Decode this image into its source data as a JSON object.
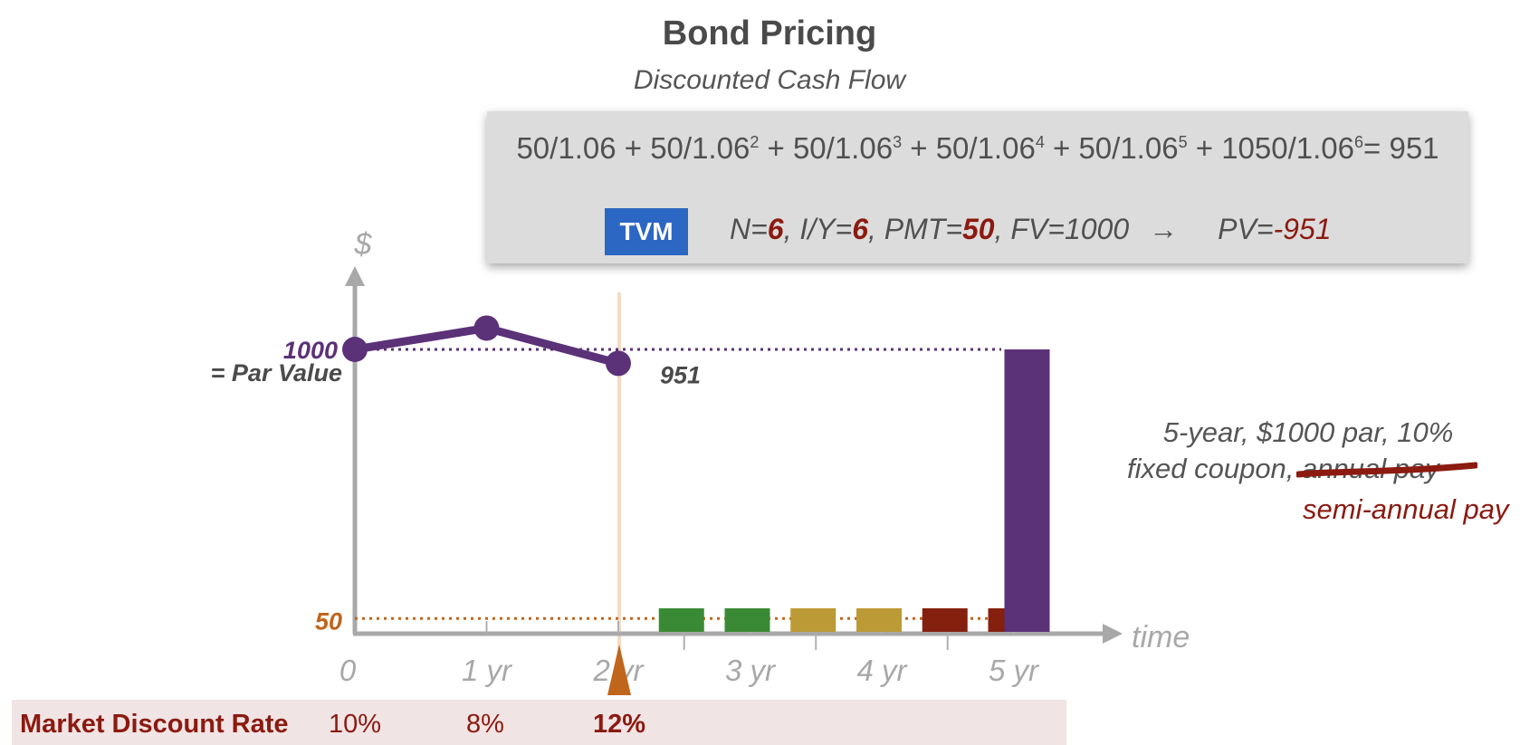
{
  "title": "Bond Pricing",
  "subtitle": "Discounted Cash Flow",
  "formula": {
    "terms": [
      {
        "numerator": "50",
        "base": "1.06",
        "exp": ""
      },
      {
        "numerator": "50",
        "base": "1.06",
        "exp": "2"
      },
      {
        "numerator": "50",
        "base": "1.06",
        "exp": "3"
      },
      {
        "numerator": "50",
        "base": "1.06",
        "exp": "4"
      },
      {
        "numerator": "50",
        "base": "1.06",
        "exp": "5"
      },
      {
        "numerator": "1050",
        "base": "1.06",
        "exp": "6"
      }
    ],
    "result": "= 951"
  },
  "tvm": {
    "badge": "TVM",
    "n_label": "N=",
    "n": "6",
    "iy_label": ", I/Y=",
    "iy": "6",
    "pmt_label": ", PMT=",
    "pmt": "50",
    "fv_label": ", FV=1000",
    "arrow": "→",
    "pv_label": "PV=",
    "pv": "-951"
  },
  "axis": {
    "y_label": "$",
    "x_label": "time",
    "ticks": [
      "0",
      "1 yr",
      "2 yr",
      "3 yr",
      "4 yr",
      "5 yr"
    ],
    "par_value": "1000",
    "par_label": "= Par Value",
    "coupon_value": "50",
    "price_label": "951"
  },
  "annotation": {
    "line1": "5-year, $1000 par, 10%",
    "line2_prefix": "fixed coupon, ",
    "struck": "annual pay",
    "replacement": "semi-annual pay"
  },
  "rates": {
    "label": "Market Discount Rate",
    "values": [
      "10%",
      "8%",
      "12%"
    ]
  },
  "colors": {
    "price_line": "#5b3178",
    "par_bar": "#5b3178",
    "coupon_line": "#c0651c",
    "coupon_green": "#3a8a35",
    "coupon_gold": "#bc9a35",
    "coupon_red": "#85200f",
    "highlight": "#8b1a10"
  },
  "chart_data": {
    "type": "line",
    "x": [
      0,
      1,
      2
    ],
    "y": [
      1000,
      1075,
      951
    ],
    "ylim": [
      0,
      1150
    ],
    "coupons": {
      "times": [
        2.5,
        3,
        3.5,
        4,
        4.5,
        5
      ],
      "amount": 50,
      "colors": [
        "green",
        "green",
        "gold",
        "gold",
        "red",
        "red"
      ]
    },
    "principal": {
      "time": 5,
      "amount": 1000
    }
  }
}
